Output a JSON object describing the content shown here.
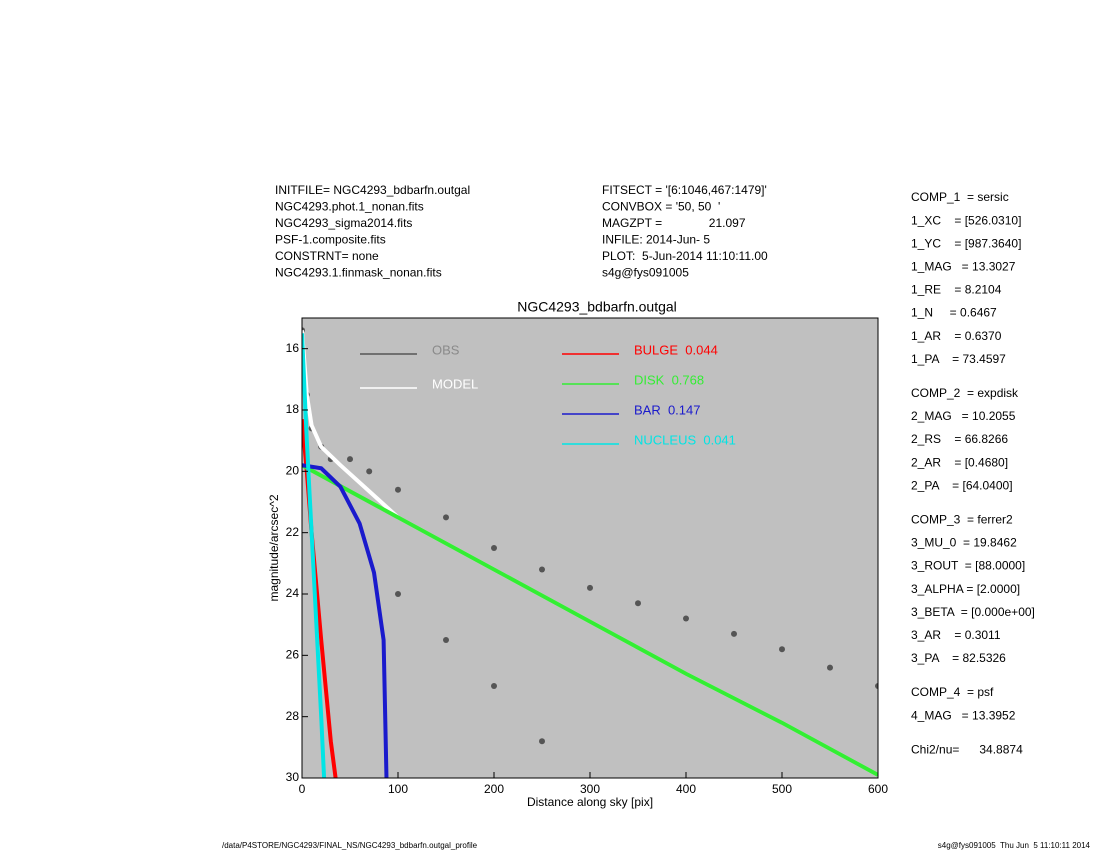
{
  "chart_data": {
    "type": "profile",
    "title": "NGC4293_bdbarfn.outgal",
    "xlabel": "Distance along sky [pix]",
    "ylabel": "magnitude/arcsec^2",
    "xlim": [
      0,
      600
    ],
    "xticks": [
      0,
      100,
      200,
      300,
      400,
      500,
      600
    ],
    "ylim": [
      30,
      15
    ],
    "yticks": [
      16,
      18,
      20,
      22,
      24,
      26,
      28,
      30
    ],
    "background": "#c0c0c0",
    "series": [
      {
        "name": "OBS",
        "color": "#555555",
        "label_color": "#8a8a8a",
        "mode": "scatter",
        "x": [
          0,
          5,
          10,
          20,
          30,
          50,
          70,
          100,
          150,
          200,
          250,
          300,
          350,
          400,
          450,
          500,
          550,
          600,
          100,
          150,
          200,
          250
        ],
        "values": [
          15.4,
          17.5,
          18.6,
          19.2,
          19.6,
          19.6,
          20,
          20.6,
          21.5,
          22.5,
          23.2,
          23.8,
          24.3,
          24.8,
          25.3,
          25.8,
          26.4,
          27,
          24,
          25.5,
          27,
          28.8
        ]
      },
      {
        "name": "MODEL",
        "color": "#ffffff",
        "label_color": "#ffffff",
        "mode": "line",
        "x": [
          0,
          5,
          10,
          20,
          40,
          100,
          200,
          300,
          400,
          500,
          600
        ],
        "values": [
          15.4,
          17.5,
          18.5,
          19.2,
          19.8,
          21.5,
          23.2,
          24.9,
          26.6,
          28.2,
          29.9
        ]
      },
      {
        "name": "BULGE  0.044",
        "color": "#ff0000",
        "label_color": "#ff0000",
        "mode": "line",
        "x": [
          0,
          5,
          10,
          20,
          30,
          35
        ],
        "values": [
          18.3,
          20,
          22,
          25.5,
          28.8,
          30
        ]
      },
      {
        "name": "DISK  0.768",
        "color": "#33ee33",
        "label_color": "#33ee33",
        "mode": "line",
        "x": [
          0,
          100,
          200,
          300,
          400,
          500,
          600
        ],
        "values": [
          19.8,
          21.5,
          23.2,
          24.9,
          26.6,
          28.2,
          29.9
        ]
      },
      {
        "name": "BAR  0.147",
        "color": "#1a1acc",
        "label_color": "#1a1acc",
        "mode": "line",
        "x": [
          0,
          20,
          40,
          60,
          75,
          85,
          88
        ],
        "values": [
          19.8,
          19.9,
          20.5,
          21.7,
          23.3,
          25.5,
          30
        ]
      },
      {
        "name": "NUCLEUS  0.041",
        "color": "#00e5e5",
        "label_color": "#00e5e5",
        "mode": "line",
        "x": [
          0,
          5,
          10,
          15,
          20,
          23
        ],
        "values": [
          15.5,
          19,
          22,
          25,
          28,
          30
        ]
      }
    ]
  },
  "info_left": [
    "INITFILE= NGC4293_bdbarfn.outgal",
    "NGC4293.phot.1_nonan.fits",
    "NGC4293_sigma2014.fits",
    "PSF-1.composite.fits",
    "CONSTRNT= none",
    "NGC4293.1.finmask_nonan.fits"
  ],
  "info_middle": [
    "FITSECT = '[6:1046,467:1479]'",
    "CONVBOX = '50, 50  '",
    "MAGZPT =              21.097",
    "INFILE: 2014-Jun- 5",
    "PLOT:  5-Jun-2014 11:10:11.00",
    "s4g@fys091005"
  ],
  "parameters": [
    [
      "COMP_1  = sersic",
      "1_XC    = [526.0310]",
      "1_YC    = [987.3640]",
      "1_MAG   = 13.3027",
      "1_RE    = 8.2104",
      "1_N     = 0.6467",
      "1_AR    = 0.6370",
      "1_PA    = 73.4597"
    ],
    [
      "COMP_2  = expdisk",
      "2_MAG   = 10.2055",
      "2_RS    = 66.8266",
      "2_AR    = [0.4680]",
      "2_PA    = [64.0400]"
    ],
    [
      "COMP_3  = ferrer2",
      "3_MU_0  = 19.8462",
      "3_ROUT  = [88.0000]",
      "3_ALPHA = [2.0000]",
      "3_BETA  = [0.000e+00]",
      "3_AR    = 0.3011",
      "3_PA    = 82.5326"
    ],
    [
      "COMP_4  = psf",
      "4_MAG   = 13.3952"
    ],
    [
      "Chi2/nu=      34.8874"
    ]
  ],
  "footer_left": "/data/P4STORE/NGC4293/FINAL_NS/NGC4293_bdbarfn.outgal_profile",
  "footer_right": "s4g@fys091005  Thu Jun  5 11:10:11 2014"
}
